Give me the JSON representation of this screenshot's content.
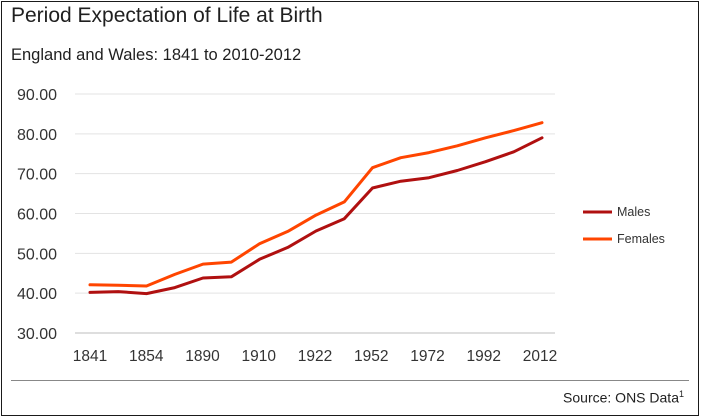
{
  "chart_data": {
    "type": "line",
    "title": "Period Expectation of Life at Birth",
    "subtitle": "England and Wales: 1841 to 2010-2012",
    "x_ticks": [
      "1841",
      "1854",
      "1890",
      "1910",
      "1922",
      "1952",
      "1972",
      "1992",
      "2012"
    ],
    "y_ticks": [
      "90.00",
      "80.00",
      "70.00",
      "60.00",
      "50.00",
      "40.00",
      "30.00"
    ],
    "ylim": [
      30,
      90
    ],
    "grid": "horizontal",
    "legend_position": "right",
    "series": [
      {
        "name": "Males",
        "color": "#b01010",
        "values": [
          40.2,
          40.4,
          39.9,
          41.4,
          43.8,
          44.1,
          48.5,
          51.5,
          55.6,
          58.7,
          66.4,
          68.1,
          69.0,
          70.8,
          73.0,
          75.5,
          79.0
        ]
      },
      {
        "name": "Females",
        "color": "#ff4500",
        "values": [
          42.1,
          42.0,
          41.8,
          44.7,
          47.3,
          47.8,
          52.4,
          55.5,
          59.6,
          62.9,
          71.5,
          74.0,
          75.3,
          77.0,
          79.0,
          80.8,
          82.8
        ]
      }
    ]
  },
  "source": {
    "text": "Source: ONS Data",
    "footnote": "1"
  }
}
